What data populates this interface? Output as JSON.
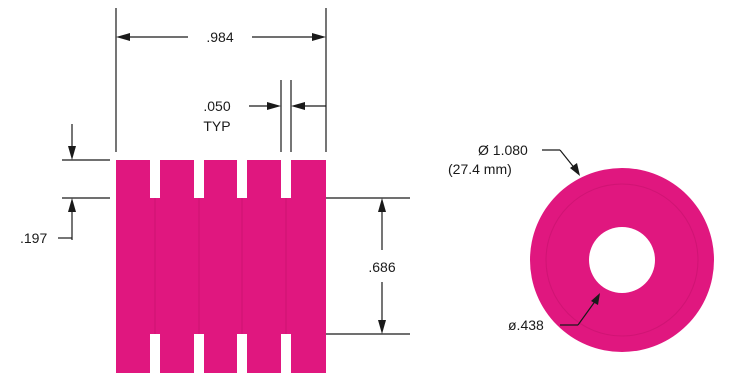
{
  "colors": {
    "part_fill": "#e0177f",
    "line": "#1a1a1a",
    "background": "#ffffff"
  },
  "side_view": {
    "overall_width_label": ".984",
    "slot_width_label": ".050",
    "slot_width_note": "TYP",
    "top_offset_label": ".197",
    "center_height_label": ".686"
  },
  "end_view": {
    "outer_diameter_label": "Ø 1.080",
    "outer_diameter_metric_label": "(27.4 mm)",
    "inner_diameter_label": "ø.438"
  }
}
